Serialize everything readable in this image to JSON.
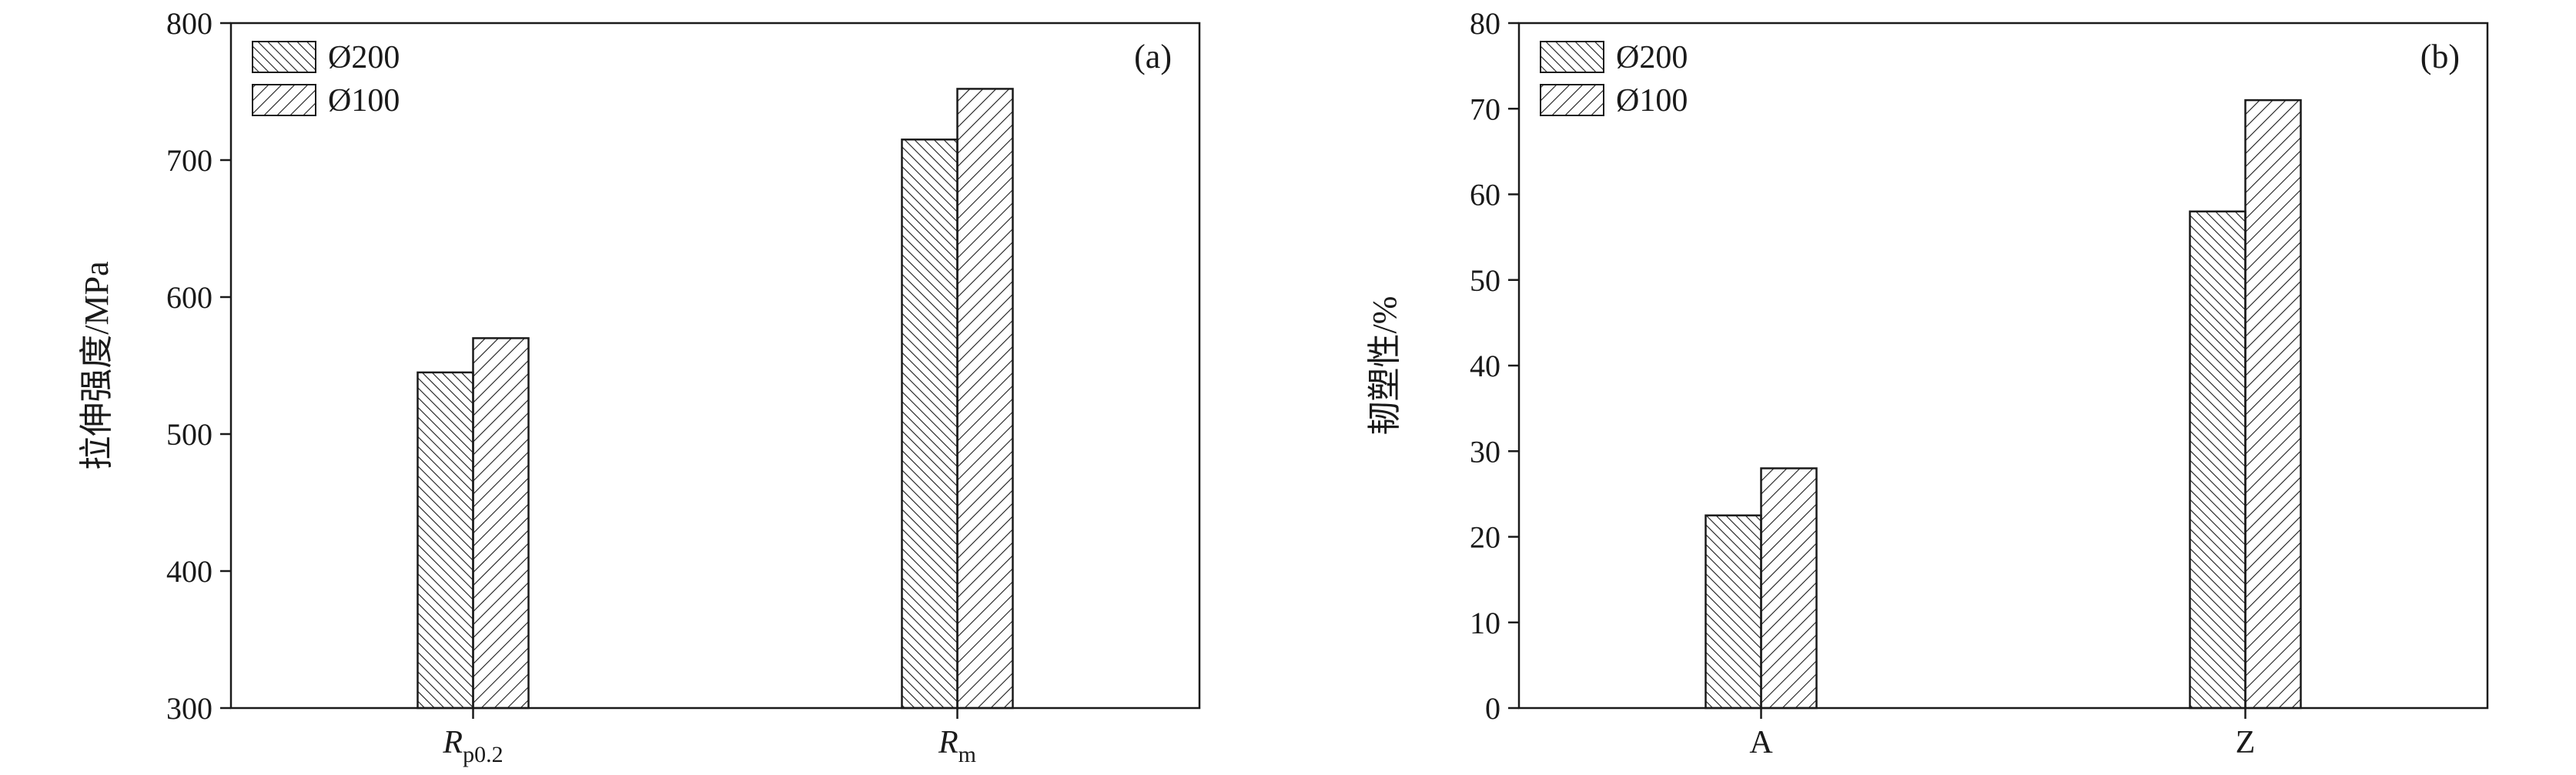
{
  "figure": {
    "background": "#ffffff",
    "ink_color": "#1a1a1a"
  },
  "chart_data": [
    {
      "type": "bar",
      "panel_label": "(a)",
      "title": "",
      "xlabel": "",
      "ylabel": "拉伸强度/MPa",
      "ylim": [
        300,
        800
      ],
      "yticks": [
        300,
        400,
        500,
        600,
        700,
        800
      ],
      "grid": false,
      "legend_position": "top-left",
      "categories": [
        {
          "text": "R",
          "sub": "p0.2",
          "italic": true
        },
        {
          "text": "R",
          "sub": "m",
          "italic": true
        }
      ],
      "series": [
        {
          "name": "Ø200",
          "hatch": "forward",
          "values": [
            545,
            715
          ]
        },
        {
          "name": "Ø100",
          "hatch": "backward",
          "values": [
            570,
            752
          ]
        }
      ]
    },
    {
      "type": "bar",
      "panel_label": "(b)",
      "title": "",
      "xlabel": "",
      "ylabel": "韧塑性/%",
      "ylim": [
        0,
        80
      ],
      "yticks": [
        0,
        10,
        20,
        30,
        40,
        50,
        60,
        70,
        80
      ],
      "grid": false,
      "legend_position": "top-left",
      "categories": [
        {
          "text": "A"
        },
        {
          "text": "Z"
        }
      ],
      "series": [
        {
          "name": "Ø200",
          "hatch": "forward",
          "values": [
            22.5,
            58
          ]
        },
        {
          "name": "Ø100",
          "hatch": "backward",
          "values": [
            28,
            71
          ]
        }
      ]
    }
  ]
}
